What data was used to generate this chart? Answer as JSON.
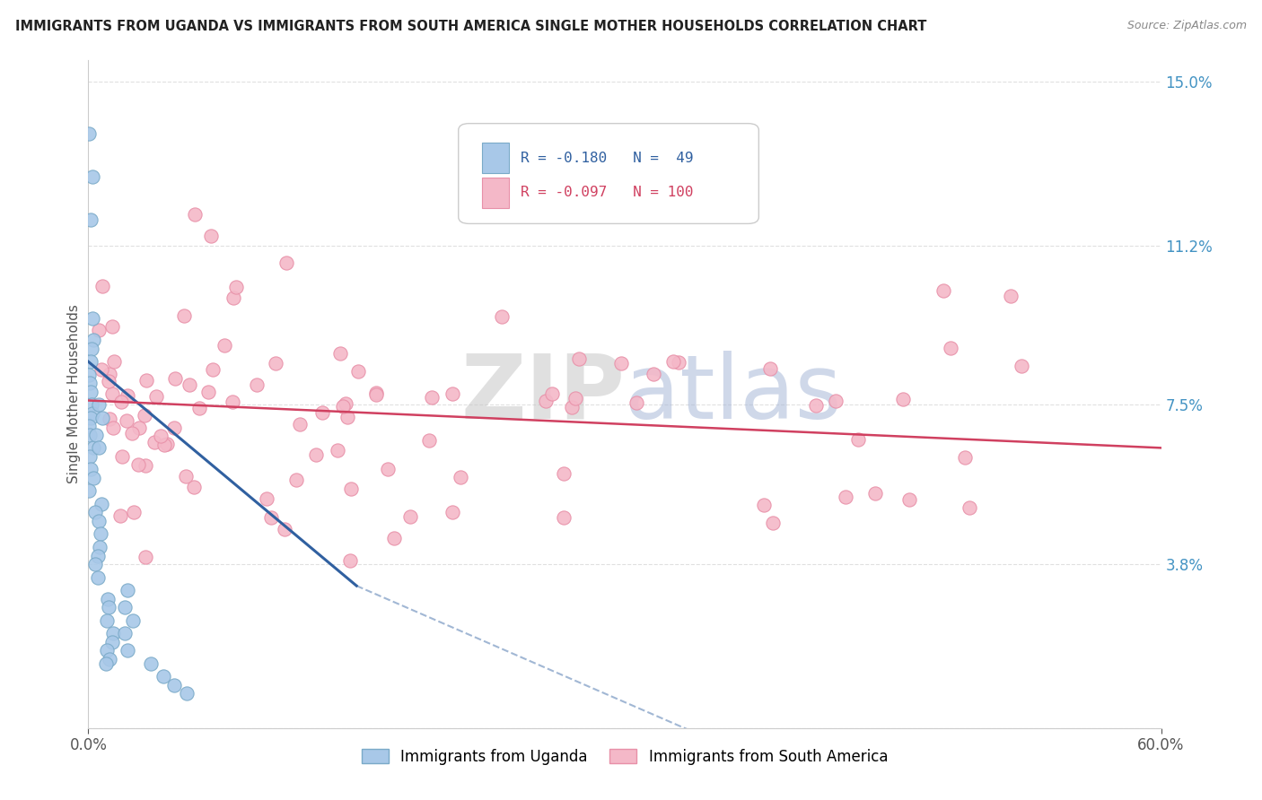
{
  "title": "IMMIGRANTS FROM UGANDA VS IMMIGRANTS FROM SOUTH AMERICA SINGLE MOTHER HOUSEHOLDS CORRELATION CHART",
  "source": "Source: ZipAtlas.com",
  "ylabel": "Single Mother Households",
  "xmin": 0.0,
  "xmax": 0.6,
  "ymin": 0.0,
  "ymax": 0.155,
  "yticks": [
    0.0,
    0.038,
    0.075,
    0.112,
    0.15
  ],
  "ytick_labels": [
    "",
    "3.8%",
    "7.5%",
    "11.2%",
    "15.0%"
  ],
  "xtick_labels": [
    "0.0%",
    "60.0%"
  ],
  "r_uganda": -0.18,
  "n_uganda": 49,
  "r_south_america": -0.097,
  "n_south_america": 100,
  "color_uganda": "#a8c8e8",
  "color_south_america": "#f4b8c8",
  "edge_uganda": "#7aaac8",
  "edge_sa": "#e890a8",
  "trend_uganda_color": "#3060a0",
  "trend_sa_color": "#d04060",
  "legend_label_uganda": "Immigrants from Uganda",
  "legend_label_sa": "Immigrants from South America",
  "watermark_zip": "ZIP",
  "watermark_atlas": "atlas",
  "watermark_zip_color": "#c8c8c8",
  "watermark_atlas_color": "#a8b8d8",
  "background_color": "#ffffff",
  "grid_color": "#dddddd",
  "title_fontsize": 10.5,
  "source_fontsize": 9
}
